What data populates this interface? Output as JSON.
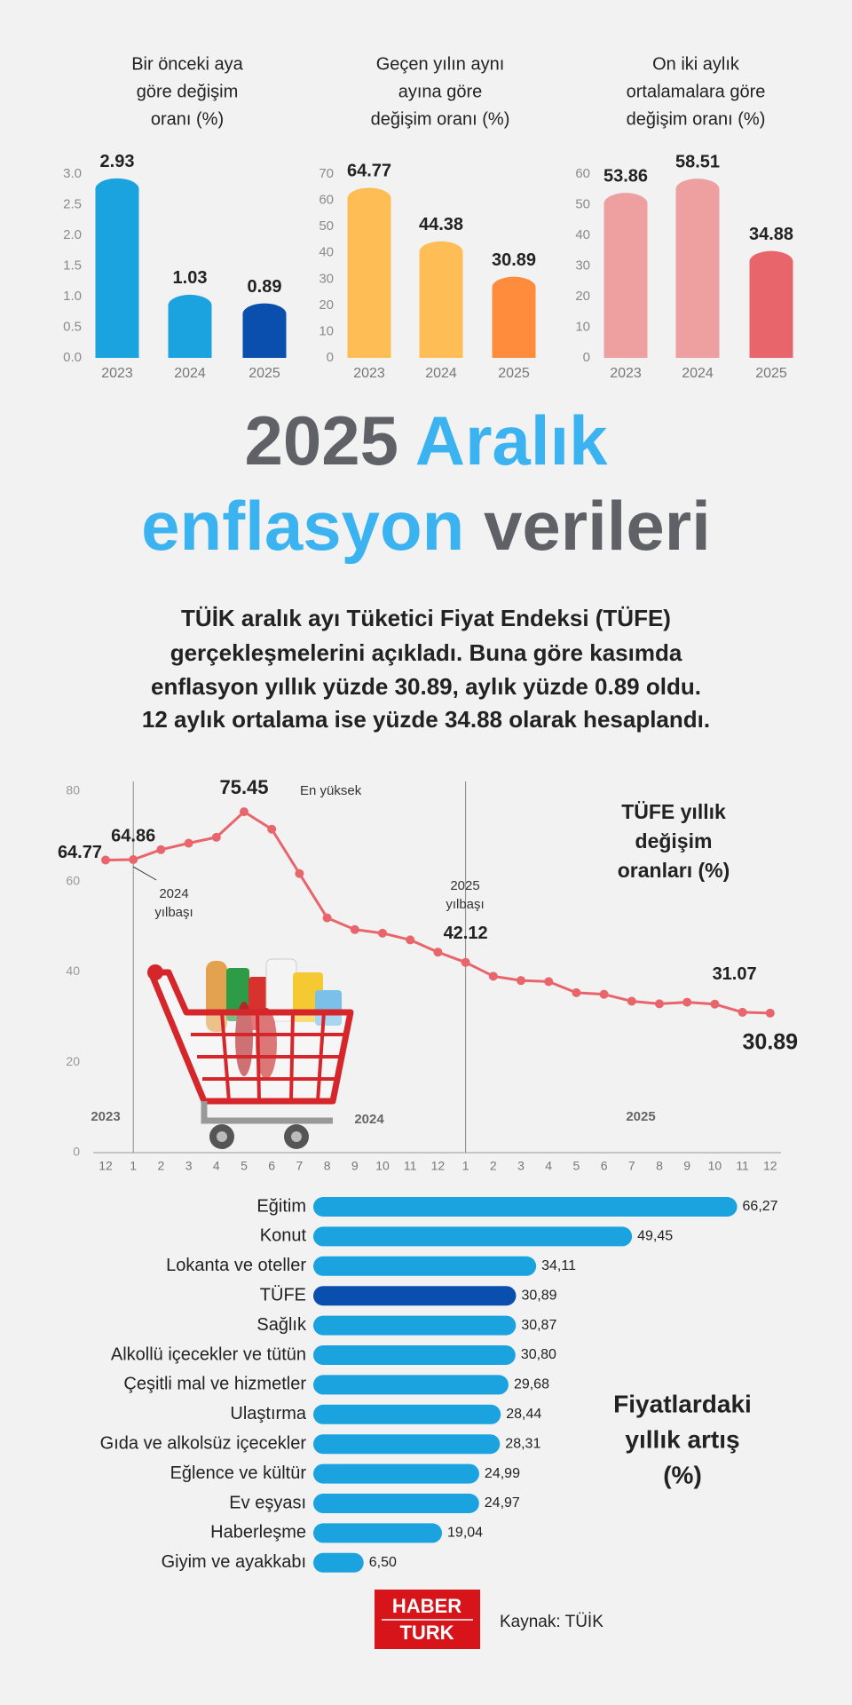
{
  "chart_data": [
    {
      "type": "bar",
      "title": [
        "Bir önceki aya",
        "göre değişim",
        "oranı (%)"
      ],
      "categories": [
        "2023",
        "2024",
        "2025"
      ],
      "values": [
        2.93,
        1.03,
        0.89
      ],
      "colors": [
        "#1aa3df",
        "#1aa3df",
        "#0a4fae"
      ],
      "ylim": [
        0,
        3
      ],
      "yticks": [
        {
          "value": 0,
          "label": "0.0"
        },
        0.5,
        {
          "value": 1,
          "label": "1.0"
        },
        1.5,
        {
          "value": 2,
          "label": "2.0"
        },
        2.5,
        {
          "value": 3,
          "label": "3.0"
        }
      ]
    },
    {
      "type": "bar",
      "title": [
        "Geçen yılın aynı",
        "ayına göre",
        "değişim oranı (%)"
      ],
      "categories": [
        "2023",
        "2024",
        "2025"
      ],
      "values": [
        64.77,
        44.38,
        30.89
      ],
      "colors": [
        "#ffbd55",
        "#ffbd55",
        "#ff8b3d"
      ],
      "ylim": [
        0,
        70
      ],
      "yticks": [
        0,
        10,
        20,
        30,
        40,
        50,
        60,
        70
      ]
    },
    {
      "type": "bar",
      "title": [
        "On iki aylık",
        "ortalamalara göre",
        "değişim oranı (%)"
      ],
      "categories": [
        "2023",
        "2024",
        "2025"
      ],
      "values": [
        53.86,
        58.51,
        34.88
      ],
      "colors": [
        "#eea0a0",
        "#eea0a0",
        "#e8656b"
      ],
      "ylim": [
        0,
        60
      ],
      "yticks": [
        0,
        10,
        20,
        30,
        40,
        50,
        60
      ]
    },
    {
      "type": "line",
      "title": [
        "TÜFE yıllık",
        "değişim",
        "oranları (%)"
      ],
      "categories": [
        "12",
        "1",
        "2",
        "3",
        "4",
        "5",
        "6",
        "7",
        "8",
        "9",
        "10",
        "11",
        "12",
        "1",
        "2",
        "3",
        "4",
        "5",
        "6",
        "7",
        "8",
        "9",
        "10",
        "11",
        "12"
      ],
      "values": [
        64.77,
        64.86,
        67.07,
        68.5,
        69.8,
        75.45,
        71.6,
        61.78,
        51.97,
        49.38,
        48.58,
        47.09,
        44.38,
        42.12,
        39.05,
        38.1,
        37.86,
        35.41,
        35.05,
        33.52,
        32.95,
        33.29,
        32.87,
        31.07,
        30.89
      ],
      "value_labels": [
        "64.77",
        "64.86",
        null,
        null,
        null,
        "75.45",
        null,
        null,
        null,
        null,
        null,
        null,
        null,
        "42.12",
        null,
        null,
        null,
        null,
        null,
        null,
        null,
        null,
        null,
        "31.07",
        "30.89"
      ],
      "color": "#e8656b",
      "ylim": [
        0,
        80
      ],
      "yticks": [
        0,
        20,
        40,
        60,
        80
      ],
      "annotations": [
        [
          "En yüksek"
        ],
        [
          "2024",
          "yılbaşı"
        ],
        [
          "2025",
          "yılbaşı"
        ]
      ],
      "period_labels": [
        "2023",
        "2024",
        "2025"
      ]
    },
    {
      "type": "barh",
      "title": [
        "Fiyatlardaki",
        "yıllık artış",
        "(%)"
      ],
      "categories": [
        "Eğitim",
        "Konut",
        "Lokanta ve oteller",
        "TÜFE",
        "Sağlık",
        "Alkollü içecekler ve tütün",
        "Çeşitli mal ve hizmetler",
        "Ulaştırma",
        "Gıda ve alkolsüz içecekler",
        "Eğlence ve kültür",
        "Ev eşyası",
        "Haberleşme",
        "Giyim ve ayakkabı"
      ],
      "values": [
        66.27,
        49.45,
        34.11,
        30.89,
        30.87,
        30.8,
        29.68,
        28.44,
        28.31,
        24.99,
        24.97,
        19.04,
        6.5
      ],
      "value_labels": [
        "66,27",
        "49,45",
        "34,11",
        "30,89",
        "30,87",
        "30,80",
        "29,68",
        "28,44",
        "28,31",
        "24,99",
        "24,97",
        "19,04",
        "6,50"
      ],
      "colors": [
        "#1aa3df",
        "#1aa3df",
        "#1aa3df",
        "#0a4fae",
        "#1aa3df",
        "#1aa3df",
        "#1aa3df",
        "#1aa3df",
        "#1aa3df",
        "#1aa3df",
        "#1aa3df",
        "#1aa3df",
        "#1aa3df"
      ],
      "xlim": [
        0,
        70
      ]
    }
  ],
  "headline": [
    {
      "text": "2025",
      "color": "#5f6166"
    },
    {
      "text": "Aralık",
      "color": "#3ab3f0"
    },
    {
      "text": "enflasyon",
      "color": "#3ab3f0"
    },
    {
      "text": "verileri",
      "color": "#5f6166"
    }
  ],
  "description": [
    "TÜİK aralık ayı Tüketici Fiyat Endeksi (TÜFE)",
    "gerçekleşmelerini açıkladı. Buna göre kasımda",
    "enflasyon yıllık yüzde 30.89, aylık yüzde 0.89 oldu.",
    "12 aylık ortalama ise yüzde 34.88 olarak hesaplandı."
  ],
  "logo": [
    "HABER",
    "TURK"
  ],
  "source": "Kaynak: TÜİK"
}
